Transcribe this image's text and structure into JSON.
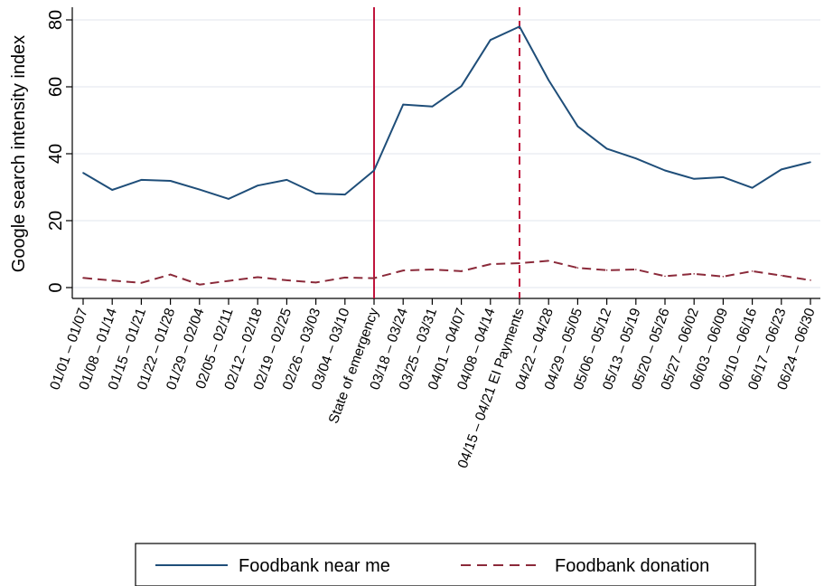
{
  "chart_data": {
    "type": "line",
    "title": "",
    "xlabel": "",
    "ylabel": "Google search intensity index",
    "ylim": [
      0,
      80
    ],
    "yticks": [
      0,
      20,
      40,
      60,
      80
    ],
    "grid": true,
    "legend_position": "bottom",
    "categories": [
      "01/01 – 01/07",
      "01/08 – 01/14",
      "01/15 – 01/21",
      "01/22 – 01/28",
      "01/29 – 02/04",
      "02/05 – 02/11",
      "02/12 – 02/18",
      "02/19 – 02/25",
      "02/26 – 03/03",
      "03/04 – 03/10",
      "State of emergency",
      "03/18 – 03/24",
      "03/25 – 03/31",
      "04/01 – 04/07",
      "04/08 – 04/14",
      "04/15 – 04/21 EI Payments",
      "04/22 – 04/28",
      "04/29 – 05/05",
      "05/06 – 05/12",
      "05/13 – 05/19",
      "05/20 – 05/26",
      "05/27 – 06/02",
      "06/03 – 06/09",
      "06/10 – 06/16",
      "06/17 – 06/23",
      "06/24 – 06/30"
    ],
    "series": [
      {
        "name": "Foodbank near me",
        "color": "#1f4e79",
        "style": "solid",
        "values": [
          34.3,
          29.2,
          32.2,
          31.9,
          29.3,
          26.5,
          30.5,
          32.2,
          28.1,
          27.8,
          35.0,
          54.7,
          54.1,
          60.2,
          74.0,
          78.0,
          62.0,
          48.2,
          41.5,
          38.6,
          35.0,
          32.5,
          33.0,
          29.8,
          35.3,
          37.5
        ]
      },
      {
        "name": "Foodbank donation",
        "color": "#8b2a3a",
        "style": "dashed",
        "values": [
          2.9,
          2.1,
          1.4,
          3.9,
          0.9,
          2.0,
          3.1,
          2.2,
          1.5,
          3.0,
          2.8,
          5.1,
          5.4,
          4.9,
          7.0,
          7.3,
          8.0,
          5.9,
          5.2,
          5.4,
          3.4,
          4.1,
          3.3,
          4.9,
          3.6,
          2.2
        ]
      }
    ],
    "vertical_markers": [
      {
        "category_index": 10,
        "style": "solid",
        "color": "#c0143c"
      },
      {
        "category_index": 15,
        "style": "dashed",
        "color": "#c0143c"
      }
    ]
  }
}
